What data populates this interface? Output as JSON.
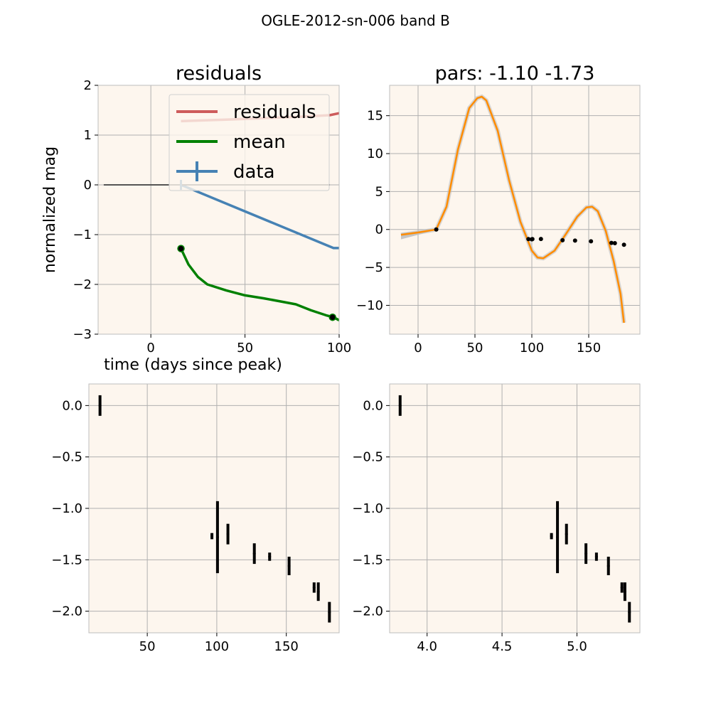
{
  "figure": {
    "suptitle": "OGLE-2012-sn-006 band B"
  },
  "colors": {
    "panel_bg": "#fdf6ee",
    "grid": "#b0b0b0",
    "residuals": "#cd5c5c",
    "mean": "#008000",
    "data": "#4682b4",
    "fit": "#ff8c00",
    "fit_band": "#c0c0c0",
    "points": "#000000"
  },
  "chart_data": [
    {
      "id": "top-left",
      "type": "line",
      "title": "residuals",
      "xlabel": "time (days since peak)",
      "ylabel": "normalized mag",
      "xlim": [
        -28,
        100
      ],
      "ylim": [
        -3,
        2
      ],
      "xticks": [
        0,
        50,
        100
      ],
      "yticks": [
        -3,
        -2,
        -1,
        0,
        1,
        2
      ],
      "grid": true,
      "legend": {
        "placement": "upper-right",
        "entries": [
          "residuals",
          "mean",
          "data"
        ]
      },
      "series": [
        {
          "name": "residuals",
          "x": [
            16,
            40,
            60,
            80,
            95,
            100
          ],
          "y": [
            1.28,
            1.31,
            1.34,
            1.37,
            1.4,
            1.44
          ]
        },
        {
          "name": "mean",
          "x": [
            16,
            20,
            25,
            30,
            40,
            50,
            60,
            70,
            77,
            85,
            93,
            97,
            100
          ],
          "y": [
            -1.28,
            -1.6,
            -1.85,
            -2.0,
            -2.12,
            -2.22,
            -2.28,
            -2.35,
            -2.4,
            -2.52,
            -2.62,
            -2.66,
            -2.72
          ]
        },
        {
          "name": "data",
          "x": [
            16,
            97,
            100
          ],
          "y": [
            0.0,
            -1.27,
            -1.27
          ]
        },
        {
          "name": "zero-line",
          "x": [
            -25,
            95
          ],
          "y": [
            0,
            0
          ]
        }
      ],
      "markers": [
        {
          "x": 16,
          "y": -1.28
        },
        {
          "x": 96.5,
          "y": -2.66
        }
      ]
    },
    {
      "id": "top-right",
      "type": "line",
      "title": "pars: -1.10 -1.73",
      "xlim": [
        -25,
        195
      ],
      "ylim": [
        -13.8,
        19.0
      ],
      "xticks": [
        0,
        50,
        100,
        150
      ],
      "yticks": [
        -10,
        -5,
        0,
        5,
        10,
        15
      ],
      "grid": true,
      "series": [
        {
          "name": "fit",
          "x": [
            -15,
            0,
            16,
            25,
            35,
            45,
            52,
            56,
            60,
            70,
            80,
            90,
            100,
            105,
            110,
            120,
            130,
            140,
            148,
            153,
            158,
            165,
            172,
            178,
            181
          ],
          "y": [
            -0.7,
            -0.4,
            0.0,
            3.0,
            10.5,
            16.0,
            17.3,
            17.5,
            17.0,
            13.0,
            6.5,
            1.0,
            -2.8,
            -3.7,
            -3.8,
            -2.8,
            -0.6,
            1.7,
            2.9,
            3.0,
            2.4,
            -0.2,
            -4.2,
            -8.5,
            -12.3
          ]
        }
      ],
      "band": {
        "x": [
          -15,
          0,
          16
        ],
        "y_low": [
          -1.3,
          -0.7,
          -0.05
        ],
        "y_high": [
          -0.5,
          -0.2,
          0.05
        ]
      },
      "points": {
        "x": [
          16,
          97,
          100,
          100.5,
          108,
          127,
          138,
          152,
          170,
          173,
          181
        ],
        "y": [
          0.0,
          -1.27,
          -1.3,
          -1.27,
          -1.25,
          -1.42,
          -1.47,
          -1.56,
          -1.77,
          -1.8,
          -2.01
        ]
      }
    },
    {
      "id": "bottom-left",
      "type": "scatter",
      "xlim": [
        8,
        188
      ],
      "ylim": [
        -2.21,
        0.21
      ],
      "xticks": [
        50,
        100,
        150
      ],
      "yticks": [
        0.0,
        -0.5,
        -1.0,
        -1.5,
        -2.0
      ],
      "ytick_labels": [
        "0.0",
        "−0.5",
        "−1.0",
        "−1.5",
        "−2.0"
      ],
      "grid": true,
      "points": [
        {
          "x": 16,
          "y": 0.0,
          "err": 0.1
        },
        {
          "x": 96.5,
          "y": -1.27,
          "err": 0.03
        },
        {
          "x": 100.5,
          "y": -1.28,
          "err": 0.35
        },
        {
          "x": 108,
          "y": -1.25,
          "err": 0.1
        },
        {
          "x": 127,
          "y": -1.44,
          "err": 0.1
        },
        {
          "x": 138,
          "y": -1.47,
          "err": 0.04
        },
        {
          "x": 152,
          "y": -1.56,
          "err": 0.09
        },
        {
          "x": 170,
          "y": -1.77,
          "err": 0.05
        },
        {
          "x": 173,
          "y": -1.81,
          "err": 0.09
        },
        {
          "x": 181,
          "y": -2.01,
          "err": 0.1
        }
      ]
    },
    {
      "id": "bottom-right",
      "type": "scatter",
      "xlim": [
        3.75,
        5.42
      ],
      "ylim": [
        -2.21,
        0.21
      ],
      "xticks": [
        4.0,
        4.5,
        5.0
      ],
      "xtick_labels": [
        "4.0",
        "4.5",
        "5.0"
      ],
      "yticks": [
        0.0,
        -0.5,
        -1.0,
        -1.5,
        -2.0
      ],
      "ytick_labels": [
        "0.0",
        "−0.5",
        "−1.0",
        "−1.5",
        "−2.0"
      ],
      "grid": true,
      "points": [
        {
          "x": 3.82,
          "y": 0.0,
          "err": 0.1
        },
        {
          "x": 4.83,
          "y": -1.27,
          "err": 0.03
        },
        {
          "x": 4.87,
          "y": -1.28,
          "err": 0.35
        },
        {
          "x": 4.93,
          "y": -1.25,
          "err": 0.1
        },
        {
          "x": 5.06,
          "y": -1.44,
          "err": 0.1
        },
        {
          "x": 5.13,
          "y": -1.47,
          "err": 0.04
        },
        {
          "x": 5.21,
          "y": -1.56,
          "err": 0.09
        },
        {
          "x": 5.3,
          "y": -1.77,
          "err": 0.05
        },
        {
          "x": 5.32,
          "y": -1.81,
          "err": 0.09
        },
        {
          "x": 5.35,
          "y": -2.01,
          "err": 0.1
        }
      ]
    }
  ]
}
